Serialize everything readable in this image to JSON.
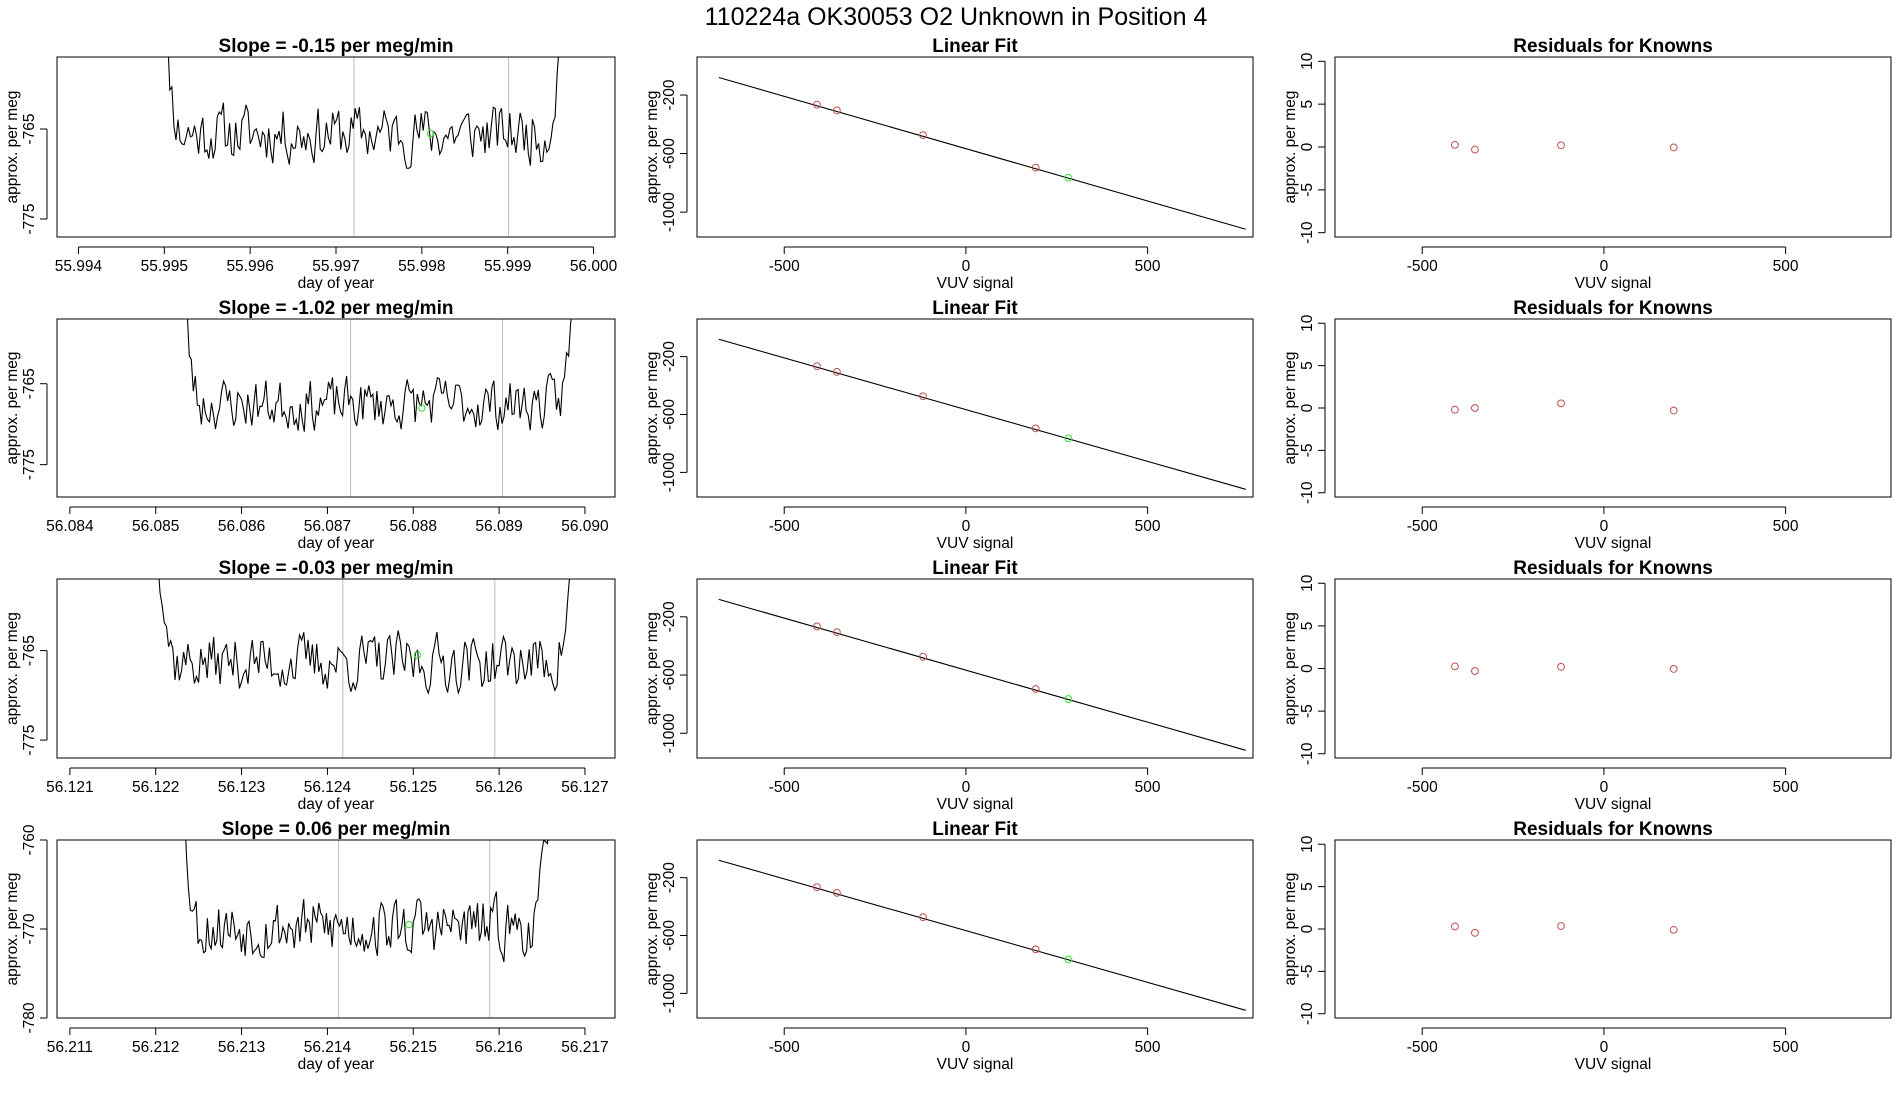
{
  "suptitle": "110224a      OK30053    O2 Unknown in Position  4",
  "colors": {
    "line": "#000000",
    "known_point": "#c0504d",
    "unknown_point": "#33dd33",
    "vline": "#bfbfbf",
    "frame": "#000000"
  },
  "chart_data": [
    {
      "type": "line",
      "panel": "time-series-1",
      "title": "Slope =  -0.15  per meg/min",
      "xlabel": "day of year",
      "ylabel": "approx. per meg",
      "xlim": [
        55.99375,
        56.00025
      ],
      "ylim": [
        -777,
        -757
      ],
      "xticks": [
        55.994,
        55.995,
        55.996,
        55.997,
        55.998,
        55.999,
        56.0
      ],
      "xtick_labels": [
        "55.994",
        "55.995",
        "55.996",
        "55.997",
        "55.998",
        "55.999",
        "56.000"
      ],
      "yticks": [
        -765,
        -775
      ],
      "ytick_labels": [
        "-765",
        "-775"
      ],
      "series_range": [
        55.99492,
        55.99972
      ],
      "baseline": -765.5,
      "noise": 2.2,
      "vlines": [
        55.99721,
        55.99901
      ],
      "unknown_point": {
        "x": 55.9981,
        "y": -765.5
      },
      "seed": 11
    },
    {
      "type": "scatter",
      "panel": "linear-fit-1",
      "title": "Linear Fit",
      "xlabel": "VUV signal",
      "ylabel": "approx. per meg",
      "xlim": [
        -740,
        790
      ],
      "ylim": [
        -1170,
        60
      ],
      "xticks": [
        -500,
        0,
        500
      ],
      "xtick_labels": [
        "-500",
        "0",
        "500"
      ],
      "yticks": [
        -200,
        -600,
        -1000
      ],
      "ytick_labels": [
        "-200",
        "-600",
        "-1000"
      ],
      "fit_line": {
        "x": [
          -680,
          770
        ],
        "y": [
          -80,
          -1117
        ]
      },
      "knowns": {
        "x": [
          -410,
          -355,
          -118,
          192
        ],
        "y": [
          -266,
          -305,
          -474,
          -696
        ]
      },
      "unknown": {
        "x": 282,
        "y": -765
      }
    },
    {
      "type": "scatter",
      "panel": "residuals-1",
      "title": "Residuals for Knowns",
      "xlabel": "VUV signal",
      "ylabel": "approx. per meg",
      "xlim": [
        -740,
        790
      ],
      "ylim": [
        -10.5,
        10.5
      ],
      "xticks": [
        -500,
        0,
        500
      ],
      "xtick_labels": [
        "-500",
        "0",
        "500"
      ],
      "yticks": [
        10,
        5,
        0,
        -5,
        -10
      ],
      "ytick_labels": [
        "10",
        "5",
        "0",
        "-5",
        "-10"
      ],
      "x": [
        -410,
        -355,
        -118,
        192
      ],
      "y": [
        0.25,
        -0.3,
        0.2,
        -0.05
      ]
    },
    {
      "type": "line",
      "panel": "time-series-2",
      "title": "Slope =  -1.02  per meg/min",
      "xlabel": "day of year",
      "ylabel": "approx. per meg",
      "xlim": [
        56.08385,
        56.09035
      ],
      "ylim": [
        -779,
        -757
      ],
      "xticks": [
        56.084,
        56.085,
        56.086,
        56.087,
        56.088,
        56.089,
        56.09
      ],
      "xtick_labels": [
        "56.084",
        "56.085",
        "56.086",
        "56.087",
        "56.088",
        "56.089",
        "56.090"
      ],
      "yticks": [
        -765,
        -775
      ],
      "ytick_labels": [
        "-765",
        "-775"
      ],
      "series_range": [
        56.08525,
        56.08995
      ],
      "baseline": -767.5,
      "noise": 2.2,
      "vlines": [
        56.08727,
        56.08904
      ],
      "unknown_point": {
        "x": 56.0881,
        "y": -768.0
      },
      "seed": 23
    },
    {
      "type": "scatter",
      "panel": "linear-fit-2",
      "title": "Linear Fit",
      "xlabel": "VUV signal",
      "ylabel": "approx. per meg",
      "xlim": [
        -740,
        790
      ],
      "ylim": [
        -1170,
        60
      ],
      "xticks": [
        -500,
        0,
        500
      ],
      "xtick_labels": [
        "-500",
        "0",
        "500"
      ],
      "yticks": [
        -200,
        -600,
        -1000
      ],
      "ytick_labels": [
        "-200",
        "-600",
        "-1000"
      ],
      "fit_line": {
        "x": [
          -680,
          770
        ],
        "y": [
          -80,
          -1117
        ]
      },
      "knowns": {
        "x": [
          -410,
          -355,
          -118,
          192
        ],
        "y": [
          -266,
          -305,
          -474,
          -696
        ]
      },
      "unknown": {
        "x": 282,
        "y": -765
      }
    },
    {
      "type": "scatter",
      "panel": "residuals-2",
      "title": "Residuals for Knowns",
      "xlabel": "VUV signal",
      "ylabel": "approx. per meg",
      "xlim": [
        -740,
        790
      ],
      "ylim": [
        -10.5,
        10.5
      ],
      "xticks": [
        -500,
        0,
        500
      ],
      "xtick_labels": [
        "-500",
        "0",
        "500"
      ],
      "yticks": [
        10,
        5,
        0,
        -5,
        -10
      ],
      "ytick_labels": [
        "10",
        "5",
        "0",
        "-5",
        "-10"
      ],
      "x": [
        -410,
        -355,
        -118,
        192
      ],
      "y": [
        -0.2,
        0.0,
        0.55,
        -0.3
      ]
    },
    {
      "type": "line",
      "panel": "time-series-3",
      "title": "Slope =  -0.03  per meg/min",
      "xlabel": "day of year",
      "ylabel": "approx. per meg",
      "xlim": [
        56.12085,
        56.12735
      ],
      "ylim": [
        -777,
        -757
      ],
      "xticks": [
        56.121,
        56.122,
        56.123,
        56.124,
        56.125,
        56.126,
        56.127
      ],
      "xtick_labels": [
        "56.121",
        "56.122",
        "56.123",
        "56.124",
        "56.125",
        "56.126",
        "56.127"
      ],
      "yticks": [
        -765,
        -775
      ],
      "ytick_labels": [
        "-765",
        "-775"
      ],
      "series_range": [
        56.12195,
        56.12695
      ],
      "baseline": -766.3,
      "noise": 2.2,
      "vlines": [
        56.12418,
        56.12595
      ],
      "unknown_point": {
        "x": 56.12505,
        "y": -765.5
      },
      "seed": 37
    },
    {
      "type": "scatter",
      "panel": "linear-fit-3",
      "title": "Linear Fit",
      "xlabel": "VUV signal",
      "ylabel": "approx. per meg",
      "xlim": [
        -740,
        790
      ],
      "ylim": [
        -1170,
        60
      ],
      "xticks": [
        -500,
        0,
        500
      ],
      "xtick_labels": [
        "-500",
        "0",
        "500"
      ],
      "yticks": [
        -200,
        -600,
        -1000
      ],
      "ytick_labels": [
        "-200",
        "-600",
        "-1000"
      ],
      "fit_line": {
        "x": [
          -680,
          770
        ],
        "y": [
          -80,
          -1117
        ]
      },
      "knowns": {
        "x": [
          -410,
          -355,
          -118,
          192
        ],
        "y": [
          -266,
          -305,
          -474,
          -696
        ]
      },
      "unknown": {
        "x": 282,
        "y": -765
      }
    },
    {
      "type": "scatter",
      "panel": "residuals-3",
      "title": "Residuals for Knowns",
      "xlabel": "VUV signal",
      "ylabel": "approx. per meg",
      "xlim": [
        -740,
        790
      ],
      "ylim": [
        -10.5,
        10.5
      ],
      "xticks": [
        -500,
        0,
        500
      ],
      "xtick_labels": [
        "-500",
        "0",
        "500"
      ],
      "yticks": [
        10,
        5,
        0,
        -5,
        -10
      ],
      "ytick_labels": [
        "10",
        "5",
        "0",
        "-5",
        "-10"
      ],
      "x": [
        -410,
        -355,
        -118,
        192
      ],
      "y": [
        0.25,
        -0.3,
        0.2,
        -0.05
      ]
    },
    {
      "type": "line",
      "panel": "time-series-4",
      "title": "Slope =  0.06  per meg/min",
      "xlabel": "day of year",
      "ylabel": "approx. per meg",
      "xlim": [
        56.21085,
        56.21735
      ],
      "ylim": [
        -780,
        -760
      ],
      "xticks": [
        56.211,
        56.212,
        56.213,
        56.214,
        56.215,
        56.216,
        56.217
      ],
      "xtick_labels": [
        "56.211",
        "56.212",
        "56.213",
        "56.214",
        "56.215",
        "56.216",
        "56.217"
      ],
      "yticks": [
        -760,
        -770,
        -780
      ],
      "ytick_labels": [
        "-760",
        "-770",
        "-780"
      ],
      "series_range": [
        56.21225,
        56.21665
      ],
      "baseline": -769.8,
      "noise": 2.3,
      "vlines": [
        56.21413,
        56.21589
      ],
      "unknown_point": {
        "x": 56.21495,
        "y": -769.5
      },
      "seed": 53
    },
    {
      "type": "scatter",
      "panel": "linear-fit-4",
      "title": "Linear Fit",
      "xlabel": "VUV signal",
      "ylabel": "approx. per meg",
      "xlim": [
        -740,
        790
      ],
      "ylim": [
        -1170,
        60
      ],
      "xticks": [
        -500,
        0,
        500
      ],
      "xtick_labels": [
        "-500",
        "0",
        "500"
      ],
      "yticks": [
        -200,
        -600,
        -1000
      ],
      "ytick_labels": [
        "-200",
        "-600",
        "-1000"
      ],
      "fit_line": {
        "x": [
          -680,
          770
        ],
        "y": [
          -80,
          -1117
        ]
      },
      "knowns": {
        "x": [
          -410,
          -355,
          -118,
          192
        ],
        "y": [
          -266,
          -305,
          -474,
          -696
        ]
      },
      "unknown": {
        "x": 282,
        "y": -765
      }
    },
    {
      "type": "scatter",
      "panel": "residuals-4",
      "title": "Residuals for Knowns",
      "xlabel": "VUV signal",
      "ylabel": "approx. per meg",
      "xlim": [
        -740,
        790
      ],
      "ylim": [
        -10.5,
        10.5
      ],
      "xticks": [
        -500,
        0,
        500
      ],
      "xtick_labels": [
        "-500",
        "0",
        "500"
      ],
      "yticks": [
        10,
        5,
        0,
        -5,
        -10
      ],
      "ytick_labels": [
        "10",
        "5",
        "0",
        "-5",
        "-10"
      ],
      "x": [
        -410,
        -355,
        -118,
        192
      ],
      "y": [
        0.3,
        -0.45,
        0.35,
        -0.1
      ]
    }
  ]
}
